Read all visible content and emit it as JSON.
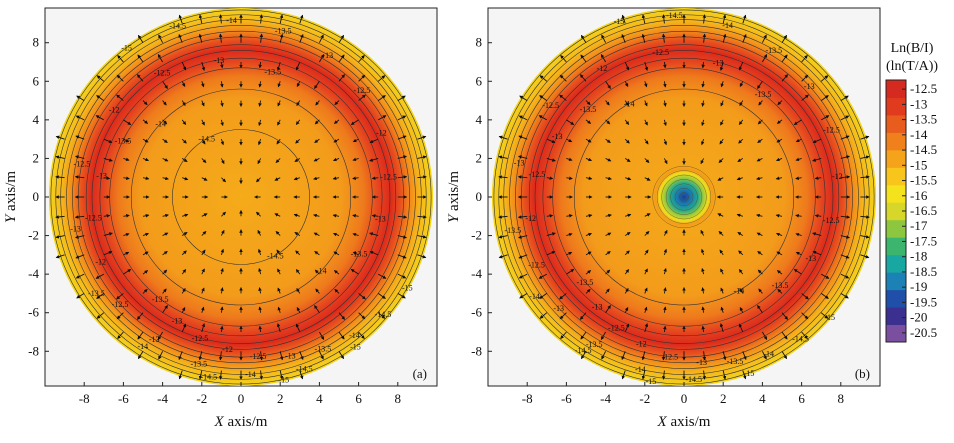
{
  "figure": {
    "colorbar": {
      "title_line1": "Ln(B/I)",
      "title_line2": "(ln(T/A))",
      "ticks": [
        -12.5,
        -13,
        -13.5,
        -14,
        -14.5,
        -15,
        -15.5,
        -16,
        -16.5,
        -17,
        -17.5,
        -18,
        -18.5,
        -19,
        -19.5,
        -20,
        -20.5
      ],
      "tick_labels": [
        "-12.5",
        "-13",
        "-13.5",
        "-14",
        "-14.5",
        "-15",
        "-15.5",
        "-16",
        "-16.5",
        "-17",
        "-17.5",
        "-18",
        "-18.5",
        "-19",
        "-19.5",
        "-20",
        "-20.5"
      ],
      "range": [
        -20.8,
        -12.2
      ],
      "colors": [
        "#7a4fa0",
        "#3b2f8f",
        "#1f4fa8",
        "#1c82b5",
        "#19a7a2",
        "#3cb56e",
        "#8dc63f",
        "#d6d72a",
        "#f4e21c",
        "#f7c51b",
        "#f5a31a",
        "#f0801b",
        "#e85d1e",
        "#e03a1f",
        "#d42a1f"
      ]
    },
    "color_hex": {
      "background": "#f5f5f5",
      "ring_red": "#e63522",
      "center_orange": "#f4a81a",
      "edge_yellow": "#f4d51c"
    }
  },
  "chart_data": [
    {
      "type": "heatmap",
      "panel_label": "(a)",
      "xlabel_italic": "X",
      "xlabel_rest": " axis/m",
      "ylabel_italic": "Y",
      "ylabel_rest": " axis/m",
      "xlim": [
        -10,
        10
      ],
      "ylim": [
        -9.8,
        9.8
      ],
      "xticks": [
        -8,
        -6,
        -4,
        -2,
        0,
        2,
        4,
        6,
        8
      ],
      "xtick_labels": [
        "-8",
        "-6",
        "-4",
        "-2",
        "0",
        "2",
        "4",
        "6",
        "8"
      ],
      "yticks": [
        -8,
        -6,
        -4,
        -2,
        0,
        2,
        4,
        6,
        8
      ],
      "ytick_labels": [
        "-8",
        "-6",
        "-4",
        "-2",
        "0",
        "2",
        "4",
        "6",
        "8"
      ],
      "domain_radius": 9.8,
      "contours": [
        {
          "label": "-14.5",
          "radius": 3.5
        },
        {
          "label": "-14",
          "radius": 5.6
        },
        {
          "label": "-13.5",
          "radius": 6.7
        },
        {
          "label": "-13",
          "radius": 7.2
        },
        {
          "label": "-12.5",
          "radius": 7.6
        },
        {
          "label": "-12",
          "radius": 7.9
        },
        {
          "label": "-12.5",
          "radius": 8.3
        },
        {
          "label": "-13",
          "radius": 8.6
        },
        {
          "label": "-13.5",
          "radius": 8.9
        },
        {
          "label": "-14",
          "radius": 9.2
        },
        {
          "label": "-14.5",
          "radius": 9.45
        },
        {
          "label": "-15",
          "radius": 9.7
        }
      ],
      "center_anomaly": false
    },
    {
      "type": "heatmap",
      "panel_label": "(b)",
      "xlabel_italic": "X",
      "xlabel_rest": " axis/m",
      "ylabel_italic": "Y",
      "ylabel_rest": " axis/m",
      "xlim": [
        -10,
        10
      ],
      "ylim": [
        -9.8,
        9.8
      ],
      "xticks": [
        -8,
        -6,
        -4,
        -2,
        0,
        2,
        4,
        6,
        8
      ],
      "xtick_labels": [
        "-8",
        "-6",
        "-4",
        "-2",
        "0",
        "2",
        "4",
        "6",
        "8"
      ],
      "yticks": [
        -8,
        -6,
        -4,
        -2,
        0,
        2,
        4,
        6,
        8
      ],
      "ytick_labels": [
        "-8",
        "-6",
        "-4",
        "-2",
        "0",
        "2",
        "4",
        "6",
        "8"
      ],
      "domain_radius": 9.8,
      "contours": [
        {
          "label": "-14",
          "radius": 5.6
        },
        {
          "label": "-13.5",
          "radius": 6.7
        },
        {
          "label": "-13",
          "radius": 7.2
        },
        {
          "label": "-12.5",
          "radius": 7.6
        },
        {
          "label": "-12",
          "radius": 7.9
        },
        {
          "label": "-12.5",
          "radius": 8.3
        },
        {
          "label": "-13",
          "radius": 8.6
        },
        {
          "label": "-13.5",
          "radius": 8.9
        },
        {
          "label": "-14",
          "radius": 9.2
        },
        {
          "label": "-14.5",
          "radius": 9.45
        },
        {
          "label": "-15",
          "radius": 9.7
        }
      ],
      "center_anomaly": true,
      "center_anomaly_radius": 1.6
    }
  ]
}
